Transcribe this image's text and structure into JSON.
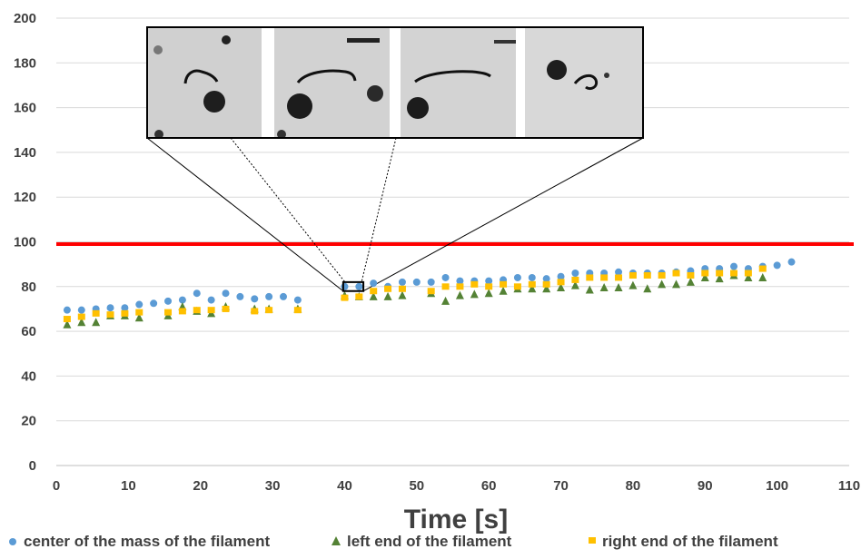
{
  "chart_data": {
    "type": "scatter",
    "xlabel": "Time [s]",
    "ylabel": "",
    "xlim": [
      0,
      110
    ],
    "ylim": [
      0,
      200
    ],
    "xticks": [
      "0",
      "10",
      "20",
      "30",
      "40",
      "50",
      "60",
      "70",
      "80",
      "90",
      "100",
      "110"
    ],
    "yticks": [
      "0",
      "20",
      "40",
      "60",
      "80",
      "100",
      "120",
      "140",
      "160",
      "180",
      "200"
    ],
    "grid": "horizontal",
    "legend_position": "bottom",
    "reference_line": {
      "y": 99,
      "color": "#ff0000"
    },
    "zoom_box": {
      "x": [
        39.8,
        42.6
      ],
      "y": [
        78,
        82
      ]
    },
    "inset": {
      "description": "filament micrograph frames",
      "frames": 4
    },
    "series": [
      {
        "name": "center of the mass of the filament",
        "marker": "circle",
        "color": "#5b9bd5",
        "points": [
          [
            1.5,
            69.5
          ],
          [
            3.5,
            69.5
          ],
          [
            5.5,
            70
          ],
          [
            7.5,
            70.5
          ],
          [
            9.5,
            70.5
          ],
          [
            11.5,
            72
          ],
          [
            13.5,
            72.5
          ],
          [
            15.5,
            73.5
          ],
          [
            17.5,
            74
          ],
          [
            19.5,
            77
          ],
          [
            21.5,
            74
          ],
          [
            23.5,
            77
          ],
          [
            25.5,
            75.5
          ],
          [
            27.5,
            74.5
          ],
          [
            29.5,
            75.5
          ],
          [
            31.5,
            75.5
          ],
          [
            33.5,
            74
          ],
          [
            40,
            80
          ],
          [
            42,
            80
          ],
          [
            44,
            81.5
          ],
          [
            46,
            80
          ],
          [
            48,
            82
          ],
          [
            50,
            82
          ],
          [
            52,
            82
          ],
          [
            54,
            84
          ],
          [
            56,
            82.5
          ],
          [
            58,
            82.5
          ],
          [
            60,
            82.5
          ],
          [
            62,
            83
          ],
          [
            64,
            84
          ],
          [
            66,
            84
          ],
          [
            68,
            83.5
          ],
          [
            70,
            84.5
          ],
          [
            72,
            86
          ],
          [
            74,
            86
          ],
          [
            76,
            86
          ],
          [
            78,
            86.5
          ],
          [
            80,
            86
          ],
          [
            82,
            86
          ],
          [
            84,
            86
          ],
          [
            86,
            86.5
          ],
          [
            88,
            87
          ],
          [
            90,
            88
          ],
          [
            92,
            88
          ],
          [
            94,
            89
          ],
          [
            96,
            88
          ],
          [
            98,
            89
          ],
          [
            100,
            89.5
          ],
          [
            102,
            91
          ]
        ]
      },
      {
        "name": "left end of the filament",
        "marker": "triangle",
        "color": "#548235",
        "points": [
          [
            1.5,
            63
          ],
          [
            3.5,
            64
          ],
          [
            5.5,
            64
          ],
          [
            7.5,
            67
          ],
          [
            9.5,
            67
          ],
          [
            11.5,
            66
          ],
          [
            15.5,
            67
          ],
          [
            17.5,
            71
          ],
          [
            19.5,
            69
          ],
          [
            21.5,
            68
          ],
          [
            23.5,
            71
          ],
          [
            27.5,
            70
          ],
          [
            29.5,
            70
          ],
          [
            33.5,
            70
          ],
          [
            40,
            76
          ],
          [
            42,
            75.5
          ],
          [
            44,
            75.5
          ],
          [
            46,
            75.5
          ],
          [
            48,
            76
          ],
          [
            52,
            77
          ],
          [
            54,
            73.5
          ],
          [
            56,
            76
          ],
          [
            58,
            76.5
          ],
          [
            60,
            77
          ],
          [
            62,
            78
          ],
          [
            64,
            79
          ],
          [
            66,
            79
          ],
          [
            68,
            79
          ],
          [
            70,
            79.5
          ],
          [
            72,
            80.5
          ],
          [
            74,
            78.5
          ],
          [
            76,
            79.5
          ],
          [
            78,
            79.5
          ],
          [
            80,
            80.5
          ],
          [
            82,
            79
          ],
          [
            84,
            81
          ],
          [
            86,
            81
          ],
          [
            88,
            82
          ],
          [
            90,
            84
          ],
          [
            92,
            83.5
          ],
          [
            94,
            85
          ],
          [
            96,
            84
          ],
          [
            98,
            84
          ]
        ]
      },
      {
        "name": "right end of the filament",
        "marker": "square",
        "color": "#ffc000",
        "points": [
          [
            1.5,
            65.5
          ],
          [
            3.5,
            66.5
          ],
          [
            5.5,
            68
          ],
          [
            7.5,
            67.5
          ],
          [
            9.5,
            68
          ],
          [
            11.5,
            68.5
          ],
          [
            15.5,
            68.5
          ],
          [
            17.5,
            69
          ],
          [
            19.5,
            69.5
          ],
          [
            21.5,
            69.5
          ],
          [
            23.5,
            70
          ],
          [
            27.5,
            69
          ],
          [
            29.5,
            69.5
          ],
          [
            33.5,
            69.5
          ],
          [
            40,
            75
          ],
          [
            42,
            75.5
          ],
          [
            44,
            78
          ],
          [
            46,
            79
          ],
          [
            48,
            79
          ],
          [
            52,
            78
          ],
          [
            54,
            80
          ],
          [
            56,
            80
          ],
          [
            58,
            81
          ],
          [
            60,
            80
          ],
          [
            62,
            81
          ],
          [
            64,
            80
          ],
          [
            66,
            81
          ],
          [
            68,
            81
          ],
          [
            70,
            82
          ],
          [
            72,
            83
          ],
          [
            74,
            84
          ],
          [
            76,
            84
          ],
          [
            78,
            84
          ],
          [
            80,
            85
          ],
          [
            82,
            85
          ],
          [
            84,
            85
          ],
          [
            86,
            86
          ],
          [
            88,
            85
          ],
          [
            90,
            86
          ],
          [
            92,
            86
          ],
          [
            94,
            86
          ],
          [
            96,
            86
          ],
          [
            98,
            88
          ]
        ]
      }
    ]
  }
}
